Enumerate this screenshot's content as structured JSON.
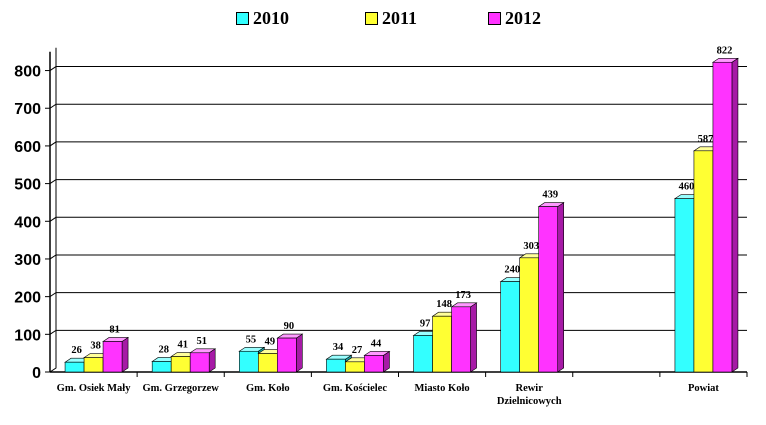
{
  "chart_data": {
    "type": "bar",
    "title": "",
    "xlabel": "",
    "ylabel": "",
    "ylim": [
      0,
      850
    ],
    "yticks": [
      0,
      100,
      200,
      300,
      400,
      500,
      600,
      700,
      800
    ],
    "ytick_labels": [
      "0",
      "100",
      "200",
      "300",
      "400",
      "500",
      "600",
      "700",
      "800"
    ],
    "grid": true,
    "legend_position": "top-center",
    "categories": [
      [
        "Gm. Osiek Mały"
      ],
      [
        "Gm. Grzegorzew"
      ],
      [
        "Gm. Koło"
      ],
      [
        "Gm. Kościelec"
      ],
      [
        "Miasto Koło"
      ],
      [
        "Rewir",
        "Dzielnicowych"
      ],
      [
        ""
      ],
      [
        "Powiat"
      ]
    ],
    "series": [
      {
        "name": "2010",
        "color": "#33ffff",
        "side": "#1aa6a6",
        "top": "#99ffff",
        "values": [
          26,
          28,
          55,
          34,
          97,
          240,
          null,
          460
        ]
      },
      {
        "name": "2011",
        "color": "#ffff33",
        "side": "#a6a61a",
        "top": "#ffff99",
        "values": [
          38,
          41,
          49,
          27,
          148,
          303,
          null,
          587
        ]
      },
      {
        "name": "2012",
        "color": "#ff33ff",
        "side": "#a61aa6",
        "top": "#ff99ff",
        "values": [
          81,
          51,
          90,
          44,
          173,
          439,
          null,
          822
        ]
      }
    ]
  }
}
